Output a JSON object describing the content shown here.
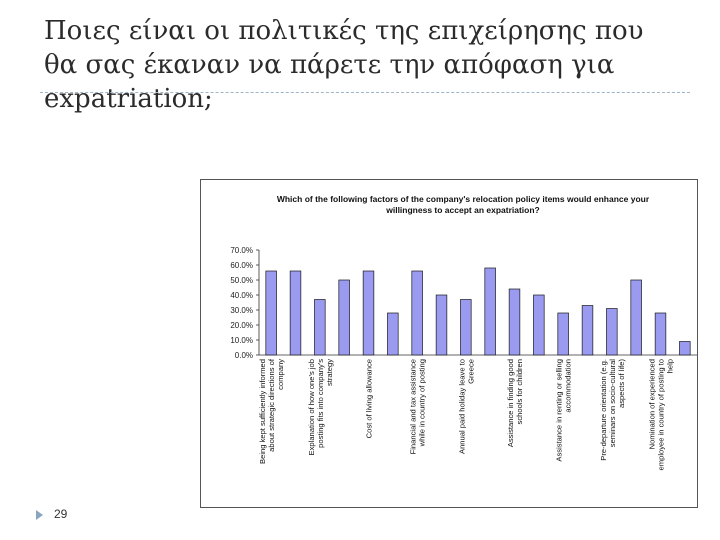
{
  "slide": {
    "title": "Ποιες είναι οι πολιτικές της επιχείρησης που θα σας έκαναν να πάρετε την απόφαση για expatriation;",
    "page_number": "29"
  },
  "colors": {
    "bar_fill": "#9a9af0",
    "bar_stroke": "#1a1a1a",
    "title_text": "#2b2b2b",
    "rule": "#9fb6c9"
  },
  "chart_data": {
    "type": "bar",
    "title": "Which of the following factors of the company's relocation policy items would enhance your willingness to accept an expatriation?",
    "title_lines": [
      "Which of the following factors of the company's relocation policy items would enhance your",
      "willingness to accept an expatriation?"
    ],
    "ylim": [
      0,
      70
    ],
    "yticks": [
      "70.0%",
      "60.0%",
      "50.0%",
      "40.0%",
      "30.0%",
      "20.0%",
      "10.0%",
      "0.0%"
    ],
    "grid": false,
    "legend": "none",
    "bars": [
      {
        "value": 56,
        "label_lines": [
          "Being kept sufficiently informed",
          "about strategic directions of",
          "company"
        ]
      },
      {
        "value": 56,
        "label_lines": []
      },
      {
        "value": 37,
        "label_lines": [
          "Explanation of how one's job",
          "posting fits into company's",
          "strategy"
        ]
      },
      {
        "value": 50,
        "label_lines": []
      },
      {
        "value": 56,
        "label_lines": [
          "Cost of living allowance"
        ]
      },
      {
        "value": 28,
        "label_lines": []
      },
      {
        "value": 56,
        "label_lines": [
          "Financial and tax assistance",
          "while in country of posting"
        ]
      },
      {
        "value": 40,
        "label_lines": []
      },
      {
        "value": 37,
        "label_lines": [
          "Annual paid holiday leave to",
          "Greece"
        ]
      },
      {
        "value": 58,
        "label_lines": []
      },
      {
        "value": 44,
        "label_lines": [
          "Assistance in finding good",
          "schools for children"
        ]
      },
      {
        "value": 40,
        "label_lines": []
      },
      {
        "value": 28,
        "label_lines": [
          "Assistance in renting or selling",
          "accommodation"
        ]
      },
      {
        "value": 33,
        "label_lines": []
      },
      {
        "value": 31,
        "label_lines": [
          "Pre-departure orientation (e.g.",
          "seminars on socio-cultural",
          "aspects of life)"
        ]
      },
      {
        "value": 50,
        "label_lines": []
      },
      {
        "value": 28,
        "label_lines": [
          "Nomination of experienced",
          "employee in country of posting to",
          "help"
        ]
      },
      {
        "value": 9,
        "label_lines": []
      }
    ]
  }
}
